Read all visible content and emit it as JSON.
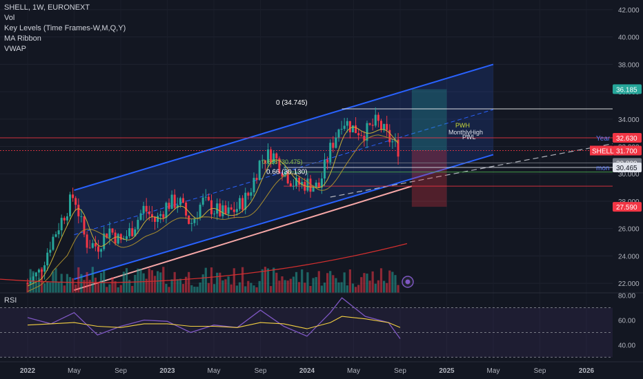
{
  "legend": {
    "title": "SHELL, 1W, EURONEXT",
    "vol": "Vol",
    "key_levels": "Key Levels (Time Frames-W,M,Q,Y)",
    "ma_ribbon": "MA Ribbon",
    "vwap": "VWAP"
  },
  "rsi": {
    "label": "RSI"
  },
  "chart_data": [
    {
      "type": "candlestick",
      "symbol": "SHELL",
      "timeframe": "1W",
      "exchange": "EURONEXT",
      "price_axis_ticks": [
        "42.000",
        "40.000",
        "38.000",
        "36.000",
        "34.000",
        "32.000",
        "30.000",
        "28.000",
        "26.000",
        "24.000",
        "22.000"
      ],
      "time_axis_ticks": [
        "2022",
        "May",
        "Sep",
        "2023",
        "May",
        "Sep",
        "2024",
        "May",
        "Sep",
        "2025",
        "May",
        "Sep",
        "2026"
      ],
      "ylim": [
        21.3,
        42.2
      ],
      "price_badges": [
        {
          "value": "36.185",
          "color": "#26a69a"
        },
        {
          "value": "32.630",
          "color": "#f23645",
          "label": "Year"
        },
        {
          "value": "31.700",
          "color": "#f23645",
          "label": "SHELL"
        },
        {
          "value": "30.800",
          "color": "#787b86"
        },
        {
          "value": "30.465",
          "color": "#e0e3eb",
          "label": "mon"
        },
        {
          "value": "27.590",
          "color": "#f23645"
        }
      ],
      "annotations": [
        {
          "text": "0 (34.745)",
          "value": 34.745
        },
        {
          "text": "0.66 (30.130)",
          "value": 30.13
        },
        {
          "text": "0.618 (30.475)",
          "value": 30.475
        },
        {
          "text": "PWH"
        },
        {
          "text": "MonthlyHigh"
        },
        {
          "text": "PWL"
        }
      ],
      "horizontal_levels": [
        34.745,
        32.63,
        31.7,
        30.8,
        30.465,
        30.13,
        29.1
      ],
      "channel": {
        "upper_start": 28.8,
        "upper_end": 38.0,
        "lower_start": 22.3,
        "lower_end": 31.4
      },
      "trade_box": {
        "entry": 31.7,
        "target": 36.185,
        "stop": 27.59
      },
      "price_series": [
        {
          "x": "2022-01",
          "y": 22.0
        },
        {
          "x": "2022-02",
          "y": 22.8
        },
        {
          "x": "2022-03",
          "y": 25.0
        },
        {
          "x": "2022-04",
          "y": 26.8
        },
        {
          "x": "2022-05",
          "y": 28.5
        },
        {
          "x": "2022-06",
          "y": 25.0
        },
        {
          "x": "2022-07",
          "y": 24.7
        },
        {
          "x": "2022-08",
          "y": 26.0
        },
        {
          "x": "2022-09",
          "y": 25.0
        },
        {
          "x": "2022-10",
          "y": 26.0
        },
        {
          "x": "2022-11",
          "y": 27.5
        },
        {
          "x": "2022-12",
          "y": 26.5
        },
        {
          "x": "2023-01",
          "y": 27.8
        },
        {
          "x": "2023-02",
          "y": 28.0
        },
        {
          "x": "2023-03",
          "y": 26.3
        },
        {
          "x": "2023-04",
          "y": 28.0
        },
        {
          "x": "2023-05",
          "y": 27.4
        },
        {
          "x": "2023-06",
          "y": 27.0
        },
        {
          "x": "2023-07",
          "y": 27.5
        },
        {
          "x": "2023-08",
          "y": 28.5
        },
        {
          "x": "2023-09",
          "y": 31.0
        },
        {
          "x": "2023-10",
          "y": 31.5
        },
        {
          "x": "2023-11",
          "y": 30.2
        },
        {
          "x": "2023-12",
          "y": 29.2
        },
        {
          "x": "2024-01",
          "y": 29.3
        },
        {
          "x": "2024-02",
          "y": 29.0
        },
        {
          "x": "2024-03",
          "y": 31.8
        },
        {
          "x": "2024-04",
          "y": 34.0
        },
        {
          "x": "2024-05",
          "y": 33.3
        },
        {
          "x": "2024-06",
          "y": 33.0
        },
        {
          "x": "2024-07",
          "y": 33.8
        },
        {
          "x": "2024-08",
          "y": 32.6
        },
        {
          "x": "2024-09",
          "y": 31.7
        }
      ]
    },
    {
      "type": "line",
      "name": "RSI",
      "ticks": [
        "80.00",
        "60.00",
        "40.00"
      ],
      "ylim": [
        28,
        82
      ],
      "levels": [
        70,
        50
      ],
      "x": [
        "2022-01",
        "2022-03",
        "2022-05",
        "2022-07",
        "2022-09",
        "2022-11",
        "2023-01",
        "2023-03",
        "2023-05",
        "2023-07",
        "2023-09",
        "2023-11",
        "2024-01",
        "2024-03",
        "2024-04",
        "2024-06",
        "2024-08",
        "2024-09"
      ],
      "values": [
        62,
        57,
        66,
        48,
        55,
        60,
        59,
        50,
        56,
        54,
        68,
        55,
        47,
        66,
        78,
        63,
        58,
        45
      ],
      "ma_values": [
        56,
        57,
        58,
        55,
        54,
        57,
        57,
        55,
        55,
        54,
        58,
        57,
        53,
        58,
        63,
        61,
        58,
        54
      ]
    }
  ]
}
